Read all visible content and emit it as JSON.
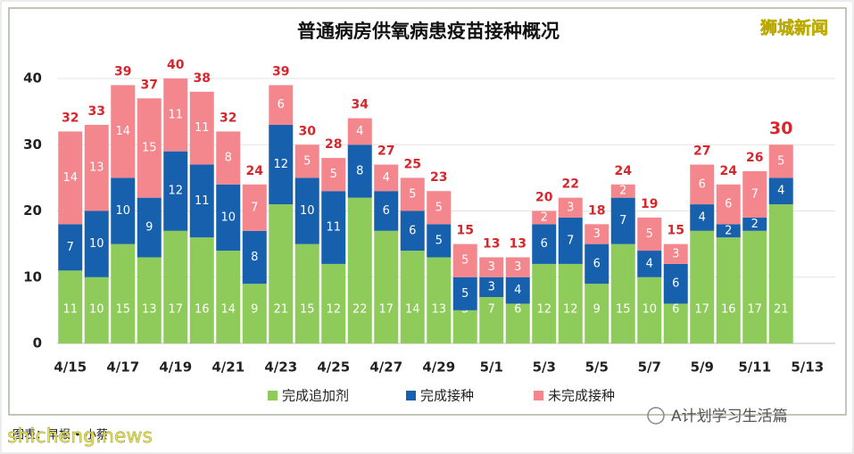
{
  "chart_data": {
    "type": "stacked_bar",
    "title": "普通病房供氧病患疫苗接种概况",
    "categories": [
      "4/15",
      null,
      "4/17",
      null,
      "4/19",
      null,
      "4/21",
      null,
      "4/23",
      null,
      "4/25",
      null,
      "4/27",
      null,
      "4/29",
      null,
      "5/1",
      null,
      "5/3",
      null,
      "5/5",
      null,
      "5/7",
      null,
      "5/9",
      null,
      "5/11",
      null,
      "5/13"
    ],
    "series": [
      {
        "name": "完成追加剂",
        "color": "#8fcb5b",
        "values": [
          11,
          10,
          15,
          13,
          17,
          16,
          14,
          9,
          21,
          15,
          12,
          22,
          17,
          14,
          13,
          5,
          7,
          6,
          12,
          12,
          9,
          15,
          10,
          6,
          17,
          16,
          17,
          21,
          null
        ]
      },
      {
        "name": "完成接种",
        "color": "#1660ad",
        "values": [
          7,
          10,
          10,
          9,
          12,
          11,
          10,
          8,
          12,
          10,
          11,
          8,
          6,
          6,
          5,
          5,
          3,
          4,
          6,
          7,
          6,
          7,
          4,
          6,
          4,
          2,
          2,
          4,
          null
        ]
      },
      {
        "name": "未完成接种",
        "color": "#f3878d",
        "values": [
          14,
          13,
          14,
          15,
          11,
          11,
          8,
          7,
          6,
          5,
          5,
          4,
          4,
          5,
          5,
          5,
          3,
          3,
          2,
          3,
          3,
          2,
          5,
          3,
          6,
          6,
          7,
          5,
          null
        ]
      }
    ],
    "totals": [
      32,
      33,
      39,
      37,
      40,
      38,
      32,
      24,
      39,
      30,
      28,
      34,
      27,
      25,
      23,
      15,
      13,
      13,
      20,
      22,
      18,
      24,
      19,
      15,
      27,
      24,
      26,
      30,
      null
    ],
    "total_color": "#d7262c",
    "ylim": [
      0,
      40
    ],
    "yticks": [
      0,
      10,
      20,
      30,
      40
    ],
    "grid": true,
    "legend": "bottom"
  },
  "overlays": {
    "brand": "狮城新闻",
    "source": "图表：早报 • 小蔡",
    "site": "shicheng.news",
    "account": "A计划学习生活篇"
  }
}
